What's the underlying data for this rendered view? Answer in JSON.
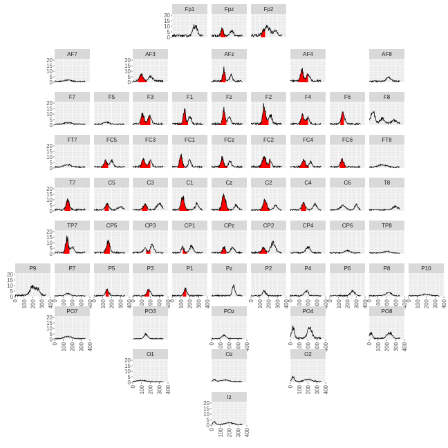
{
  "chart_data": {
    "type": "line",
    "title": "",
    "xlabel": "",
    "ylabel": "",
    "xlim": [
      0,
      400
    ],
    "ylim": [
      0,
      20
    ],
    "x_ticks": [
      "0",
      "100",
      "200",
      "300",
      "400"
    ],
    "y_ticks": [
      "0",
      "5",
      "10",
      "15",
      "20"
    ],
    "grid": true,
    "highlight_color": "#ff0000",
    "line_color": "#000000",
    "panel_background": "#ebebeb",
    "strip_background": "#d9d9d9",
    "panels": [
      {
        "label": "Fp1",
        "peaks": [
          [
            260,
            9,
            25
          ]
        ],
        "noise": 2.2,
        "red": []
      },
      {
        "label": "Fpz",
        "peaks": [
          [
            120,
            6,
            15
          ],
          [
            230,
            5,
            20
          ]
        ],
        "noise": 2.0,
        "red": [
          [
            100,
            160
          ]
        ]
      },
      {
        "label": "Fp2",
        "peaks": [
          [
            180,
            8,
            40
          ],
          [
            280,
            4,
            20
          ]
        ],
        "noise": 2.4,
        "red": [
          [
            110,
            160
          ]
        ]
      },
      {
        "label": "AF7",
        "peaks": [
          [
            150,
            1.5,
            30
          ]
        ],
        "noise": 1.0,
        "red": []
      },
      {
        "label": "AF3",
        "peaks": [
          [
            100,
            6,
            20
          ],
          [
            200,
            4,
            25
          ]
        ],
        "noise": 1.6,
        "red": [
          [
            60,
            160
          ]
        ]
      },
      {
        "label": "AFz",
        "peaks": [
          [
            140,
            11,
            12
          ],
          [
            220,
            5,
            15
          ]
        ],
        "noise": 1.6,
        "red": [
          [
            90,
            160
          ]
        ]
      },
      {
        "label": "AF4",
        "peaks": [
          [
            130,
            10,
            15
          ],
          [
            200,
            6,
            20
          ]
        ],
        "noise": 1.8,
        "red": [
          [
            90,
            200
          ]
        ]
      },
      {
        "label": "AF8",
        "peaks": [
          [
            220,
            3.5,
            25
          ]
        ],
        "noise": 1.2,
        "red": []
      },
      {
        "label": "F7",
        "peaks": [
          [
            150,
            1.5,
            40
          ]
        ],
        "noise": 1.0,
        "red": []
      },
      {
        "label": "F5",
        "peaks": [
          [
            140,
            2,
            30
          ]
        ],
        "noise": 1.0,
        "red": []
      },
      {
        "label": "F3",
        "peaks": [
          [
            110,
            9,
            18
          ],
          [
            190,
            7,
            20
          ]
        ],
        "noise": 1.5,
        "red": [
          [
            80,
            200
          ]
        ]
      },
      {
        "label": "F1",
        "peaks": [
          [
            140,
            14,
            12
          ],
          [
            200,
            6,
            18
          ]
        ],
        "noise": 1.6,
        "red": [
          [
            60,
            180
          ]
        ]
      },
      {
        "label": "Fz",
        "peaks": [
          [
            140,
            12,
            14
          ],
          [
            200,
            6,
            18
          ]
        ],
        "noise": 1.6,
        "red": [
          [
            80,
            170
          ]
        ]
      },
      {
        "label": "F2",
        "peaks": [
          [
            150,
            16,
            16
          ],
          [
            220,
            8,
            18
          ]
        ],
        "noise": 1.8,
        "red": [
          [
            80,
            200
          ]
        ]
      },
      {
        "label": "F4",
        "peaks": [
          [
            140,
            8,
            18
          ],
          [
            200,
            6,
            18
          ]
        ],
        "noise": 1.4,
        "red": [
          [
            100,
            200
          ]
        ]
      },
      {
        "label": "F6",
        "peaks": [
          [
            150,
            9,
            20
          ]
        ],
        "noise": 1.4,
        "red": [
          [
            120,
            160
          ]
        ]
      },
      {
        "label": "F8",
        "peaks": [
          [
            40,
            10,
            25
          ],
          [
            150,
            5,
            25
          ],
          [
            280,
            3,
            30
          ]
        ],
        "noise": 2.0,
        "red": []
      },
      {
        "label": "FT7",
        "peaks": [
          [
            150,
            2,
            40
          ]
        ],
        "noise": 1.2,
        "red": []
      },
      {
        "label": "FC5",
        "peaks": [
          [
            130,
            5,
            18
          ],
          [
            200,
            6,
            18
          ]
        ],
        "noise": 1.4,
        "red": [
          [
            80,
            160
          ]
        ]
      },
      {
        "label": "FC3",
        "peaks": [
          [
            120,
            7,
            18
          ],
          [
            200,
            6,
            18
          ]
        ],
        "noise": 1.5,
        "red": [
          [
            80,
            200
          ]
        ]
      },
      {
        "label": "FC1",
        "peaks": [
          [
            100,
            10,
            15
          ],
          [
            200,
            6,
            15
          ]
        ],
        "noise": 1.5,
        "red": [
          [
            60,
            140
          ]
        ]
      },
      {
        "label": "FCz",
        "peaks": [
          [
            120,
            8,
            15
          ],
          [
            210,
            6,
            15
          ]
        ],
        "noise": 1.5,
        "red": [
          [
            80,
            180
          ]
        ]
      },
      {
        "label": "FC2",
        "peaks": [
          [
            150,
            9,
            20
          ],
          [
            220,
            6,
            15
          ]
        ],
        "noise": 1.6,
        "red": [
          [
            90,
            220
          ]
        ]
      },
      {
        "label": "FC4",
        "peaks": [
          [
            150,
            6,
            18
          ],
          [
            230,
            5,
            15
          ]
        ],
        "noise": 1.4,
        "red": [
          [
            100,
            210
          ]
        ]
      },
      {
        "label": "FC6",
        "peaks": [
          [
            140,
            7,
            18
          ]
        ],
        "noise": 1.4,
        "red": [
          [
            110,
            180
          ]
        ]
      },
      {
        "label": "FT8",
        "peaks": [
          [
            150,
            2,
            40
          ]
        ],
        "noise": 1.2,
        "red": []
      },
      {
        "label": "T7",
        "peaks": [
          [
            150,
            8,
            20
          ]
        ],
        "noise": 1.5,
        "red": [
          [
            110,
            180
          ]
        ]
      },
      {
        "label": "C5",
        "peaks": [
          [
            150,
            5,
            20
          ],
          [
            300,
            3,
            25
          ]
        ],
        "noise": 1.3,
        "red": [
          [
            120,
            170
          ]
        ]
      },
      {
        "label": "C3",
        "peaks": [
          [
            140,
            5,
            20
          ],
          [
            300,
            6,
            25
          ]
        ],
        "noise": 1.4,
        "red": [
          [
            100,
            170
          ]
        ]
      },
      {
        "label": "C1",
        "peaks": [
          [
            120,
            11,
            18
          ],
          [
            280,
            5,
            20
          ]
        ],
        "noise": 1.4,
        "red": [
          [
            80,
            190
          ]
        ]
      },
      {
        "label": "Cz",
        "peaks": [
          [
            140,
            13,
            20
          ],
          [
            280,
            4,
            20
          ]
        ],
        "noise": 1.4,
        "red": [
          [
            80,
            200
          ]
        ]
      },
      {
        "label": "C2",
        "peaks": [
          [
            160,
            8,
            20
          ],
          [
            280,
            4,
            20
          ]
        ],
        "noise": 1.3,
        "red": [
          [
            100,
            210
          ]
        ]
      },
      {
        "label": "C4",
        "peaks": [
          [
            150,
            6,
            20
          ],
          [
            280,
            5,
            20
          ]
        ],
        "noise": 1.3,
        "red": [
          [
            120,
            180
          ]
        ]
      },
      {
        "label": "C6",
        "peaks": [
          [
            150,
            4,
            30
          ],
          [
            300,
            4,
            20
          ]
        ],
        "noise": 1.3,
        "red": []
      },
      {
        "label": "T8",
        "peaks": [
          [
            300,
            3,
            30
          ]
        ],
        "noise": 1.2,
        "red": []
      },
      {
        "label": "TP7",
        "peaks": [
          [
            140,
            13,
            15
          ],
          [
            200,
            5,
            20
          ]
        ],
        "noise": 1.4,
        "red": [
          [
            100,
            170
          ]
        ]
      },
      {
        "label": "CP5",
        "peaks": [
          [
            160,
            10,
            20
          ]
        ],
        "noise": 1.4,
        "red": [
          [
            110,
            180
          ]
        ]
      },
      {
        "label": "CP3",
        "peaks": [
          [
            140,
            4,
            20
          ],
          [
            220,
            7,
            20
          ]
        ],
        "noise": 1.3,
        "red": [
          [
            150,
            200
          ]
        ]
      },
      {
        "label": "CP1",
        "peaks": [
          [
            120,
            5,
            15
          ],
          [
            220,
            6,
            20
          ]
        ],
        "noise": 1.3,
        "red": [
          [
            120,
            170
          ]
        ]
      },
      {
        "label": "CPz",
        "peaks": [
          [
            140,
            5,
            15
          ],
          [
            240,
            5,
            20
          ]
        ],
        "noise": 1.3,
        "red": [
          [
            100,
            170
          ]
        ]
      },
      {
        "label": "CP2",
        "peaks": [
          [
            140,
            4,
            20
          ],
          [
            250,
            9,
            25
          ]
        ],
        "noise": 1.4,
        "red": [
          [
            90,
            180
          ]
        ]
      },
      {
        "label": "CP4",
        "peaks": [
          [
            200,
            5,
            25
          ]
        ],
        "noise": 1.2,
        "red": []
      },
      {
        "label": "CP6",
        "peaks": [
          [
            200,
            2,
            30
          ]
        ],
        "noise": 1.0,
        "red": []
      },
      {
        "label": "TP8",
        "peaks": [
          [
            200,
            1.5,
            30
          ]
        ],
        "noise": 0.8,
        "red": []
      },
      {
        "label": "P9",
        "peaks": [
          [
            200,
            8,
            30
          ],
          [
            260,
            5,
            20
          ]
        ],
        "noise": 1.6,
        "red": []
      },
      {
        "label": "P7",
        "peaks": [
          [
            150,
            2,
            30
          ]
        ],
        "noise": 0.8,
        "red": []
      },
      {
        "label": "P5",
        "peaks": [
          [
            150,
            6,
            18
          ]
        ],
        "noise": 1.0,
        "red": [
          [
            130,
            170
          ]
        ]
      },
      {
        "label": "P3",
        "peaks": [
          [
            180,
            6,
            20
          ]
        ],
        "noise": 1.1,
        "red": [
          [
            130,
            190
          ]
        ]
      },
      {
        "label": "P1",
        "peaks": [
          [
            150,
            6,
            18
          ]
        ],
        "noise": 1.1,
        "red": [
          [
            120,
            160
          ]
        ]
      },
      {
        "label": "Pz",
        "peaks": [
          [
            250,
            9,
            15
          ]
        ],
        "noise": 1.2,
        "red": []
      },
      {
        "label": "P2",
        "peaks": [
          [
            150,
            4,
            20
          ]
        ],
        "noise": 1.0,
        "red": []
      },
      {
        "label": "P4",
        "peaks": [
          [
            180,
            5,
            20
          ]
        ],
        "noise": 1.0,
        "red": []
      },
      {
        "label": "P6",
        "peaks": [
          [
            260,
            4,
            25
          ]
        ],
        "noise": 1.0,
        "red": []
      },
      {
        "label": "P8",
        "peaks": [
          [
            220,
            3,
            30
          ]
        ],
        "noise": 0.9,
        "red": []
      },
      {
        "label": "P10",
        "peaks": [
          [
            200,
            1.5,
            40
          ]
        ],
        "noise": 0.8,
        "red": []
      },
      {
        "label": "PO7",
        "peaks": [
          [
            150,
            2,
            40
          ]
        ],
        "noise": 0.9,
        "red": []
      },
      {
        "label": "PO3",
        "peaks": [
          [
            150,
            4,
            20
          ]
        ],
        "noise": 0.9,
        "red": []
      },
      {
        "label": "POz",
        "peaks": [
          [
            140,
            3,
            25
          ]
        ],
        "noise": 0.9,
        "red": []
      },
      {
        "label": "PO4",
        "peaks": [
          [
            30,
            10,
            15
          ],
          [
            220,
            10,
            25
          ]
        ],
        "noise": 1.6,
        "red": []
      },
      {
        "label": "PO8",
        "peaks": [
          [
            20,
            5,
            15
          ],
          [
            230,
            5,
            30
          ]
        ],
        "noise": 1.3,
        "red": []
      },
      {
        "label": "O1",
        "peaks": [
          [
            100,
            1,
            50
          ]
        ],
        "noise": 0.6,
        "red": []
      },
      {
        "label": "Oz",
        "peaks": [
          [
            30,
            2,
            15
          ],
          [
            150,
            1.5,
            40
          ]
        ],
        "noise": 0.7,
        "red": []
      },
      {
        "label": "O2",
        "peaks": [
          [
            30,
            4,
            15
          ],
          [
            200,
            2,
            40
          ]
        ],
        "noise": 0.9,
        "red": []
      },
      {
        "label": "Iz",
        "peaks": [
          [
            30,
            2,
            15
          ],
          [
            200,
            1.5,
            40
          ]
        ],
        "noise": 0.8,
        "red": []
      }
    ]
  }
}
